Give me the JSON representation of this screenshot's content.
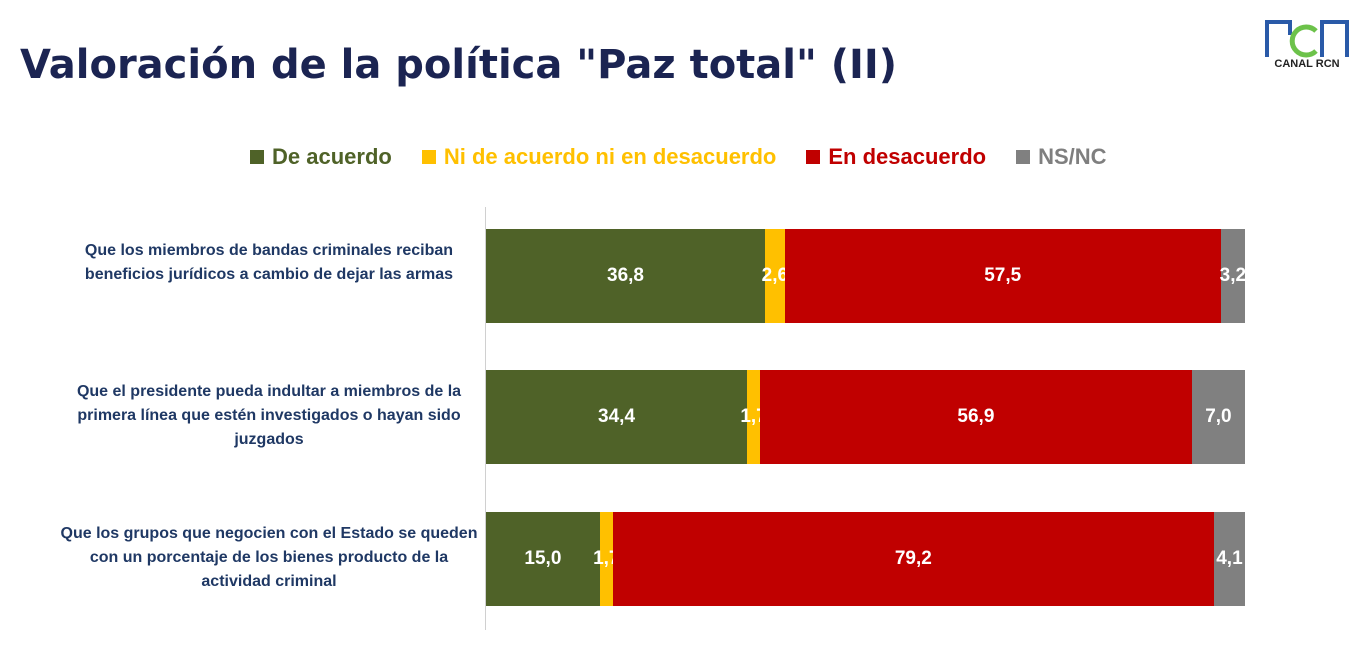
{
  "title": "Valoración de la política \"Paz total\" (II)",
  "logo": {
    "text": "CANAL RCN"
  },
  "chart_data": {
    "type": "bar",
    "orientation": "horizontal",
    "stacked": true,
    "title": "Valoración de la política \"Paz total\" (II)",
    "legend_position": "top",
    "grid": false,
    "xlim": [
      0,
      100
    ],
    "categories": [
      "Que los miembros de bandas criminales reciban beneficios jurídicos a cambio de dejar las armas",
      "Que el presidente pueda indultar a miembros de la primera línea que estén investigados o hayan sido juzgados",
      "Que los grupos que negocien con el Estado se queden con un porcentaje de los bienes producto de la actividad criminal"
    ],
    "series": [
      {
        "name": "De acuerdo",
        "color": "#4f6228",
        "values": [
          36.8,
          34.4,
          15.0
        ],
        "labels": [
          "36,8",
          "34,4",
          "15,0"
        ]
      },
      {
        "name": "Ni de acuerdo ni en desacuerdo",
        "color": "#ffc000",
        "values": [
          2.6,
          1.7,
          1.7
        ],
        "labels": [
          "2,6",
          "1,7",
          "1,7"
        ]
      },
      {
        "name": "En desacuerdo",
        "color": "#c00000",
        "values": [
          57.5,
          56.9,
          79.2
        ],
        "labels": [
          "57,5",
          "56,9",
          "79,2"
        ]
      },
      {
        "name": "NS/NC",
        "color": "#808080",
        "values": [
          3.2,
          7.0,
          4.1
        ],
        "labels": [
          "3,2",
          "7,0",
          "4,1"
        ]
      }
    ]
  }
}
